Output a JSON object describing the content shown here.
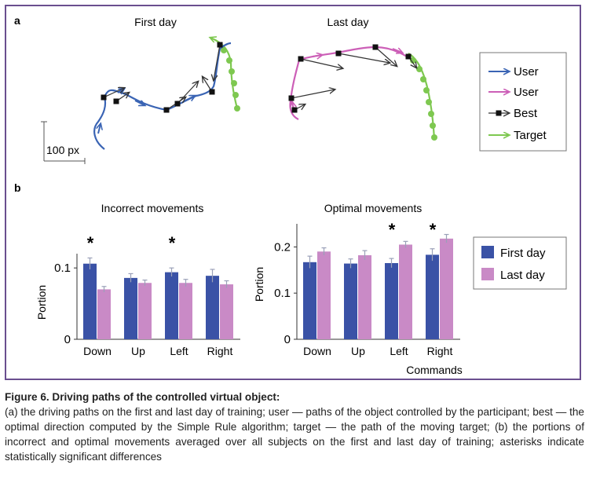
{
  "panel_a": {
    "label": "a",
    "left_title": "First day",
    "right_title": "Last day",
    "scale_label": "100 px",
    "legend": [
      {
        "label": "User",
        "color": "#3a64b4",
        "kind": "arrow"
      },
      {
        "label": "User",
        "color": "#cc5fb7",
        "kind": "arrow"
      },
      {
        "label": "Best",
        "color": "#333333",
        "kind": "square-arrow"
      },
      {
        "label": "Target",
        "color": "#7ec850",
        "kind": "arrow"
      }
    ]
  },
  "panel_b": {
    "label": "b",
    "xlabel": "Commands"
  },
  "colors": {
    "first_day": "#3a52a6",
    "last_day": "#c98ac6",
    "frame": "#6a4f8f"
  },
  "chart_data": [
    {
      "type": "bar",
      "title": "Incorrect movements",
      "ylabel": "Portion",
      "ylim": [
        0,
        0.12
      ],
      "yticks": [
        0,
        0.1
      ],
      "ytick_labels": [
        "0",
        "0.1"
      ],
      "categories": [
        "Down",
        "Up",
        "Left",
        "Right"
      ],
      "series": [
        {
          "name": "First day",
          "values": [
            0.106,
            0.086,
            0.094,
            0.089
          ],
          "errors": [
            0.008,
            0.006,
            0.006,
            0.009
          ]
        },
        {
          "name": "Last day",
          "values": [
            0.07,
            0.079,
            0.079,
            0.077
          ],
          "errors": [
            0.004,
            0.004,
            0.005,
            0.005
          ]
        }
      ],
      "significant": [
        "*",
        "",
        "*",
        ""
      ],
      "legend": "none"
    },
    {
      "type": "bar",
      "title": "Optimal movements",
      "ylabel": "Portion",
      "ylim": [
        0,
        0.25
      ],
      "yticks": [
        0,
        0.1,
        0.2
      ],
      "ytick_labels": [
        "0",
        "0.1",
        "0.2"
      ],
      "categories": [
        "Down",
        "Up",
        "Left",
        "Right"
      ],
      "series": [
        {
          "name": "First day",
          "values": [
            0.167,
            0.164,
            0.165,
            0.183
          ],
          "errors": [
            0.013,
            0.01,
            0.01,
            0.013
          ]
        },
        {
          "name": "Last day",
          "values": [
            0.19,
            0.182,
            0.205,
            0.218
          ],
          "errors": [
            0.008,
            0.01,
            0.007,
            0.009
          ]
        }
      ],
      "significant": [
        "",
        "",
        "*",
        "*"
      ],
      "legend": "right"
    }
  ],
  "caption": {
    "title": "Figure 6. Driving paths of the controlled virtual object:",
    "body": "(a) the driving paths on the first and last day of training; user — paths of the object controlled by the participant; best — the optimal direction computed by the Simple Rule algorithm; target — the path of the moving target; (b) the portions of incorrect and optimal movements averaged over all subjects on the first and last day of training; asterisks indicate statistically significant differences"
  }
}
